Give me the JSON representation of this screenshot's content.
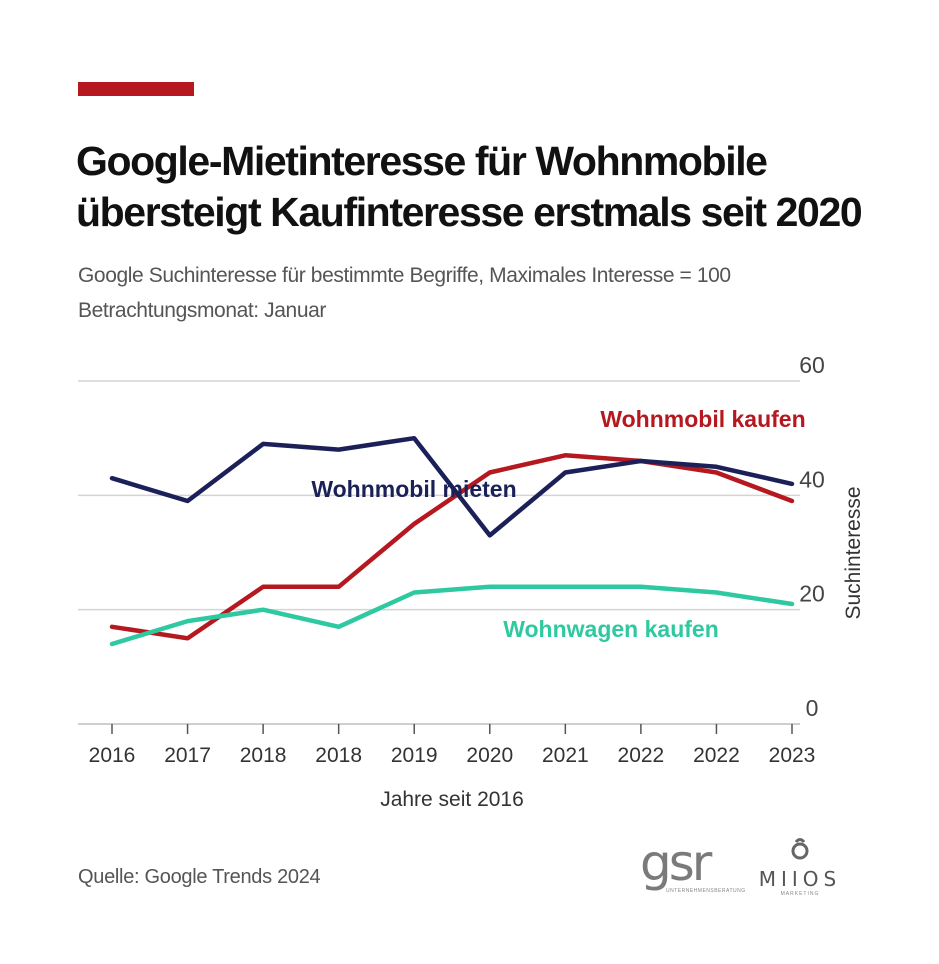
{
  "header": {
    "title": "Google-Mietinteresse für Wohnmobile übersteigt Kaufinteresse erstmals seit 2020",
    "subtitle_line1": "Google Suchinteresse für bestimmte Begriffe, Maximales Interesse = 100",
    "subtitle_line2": "Betrachtungsmonat: Januar",
    "accent_color": "#b5181f"
  },
  "chart_data": {
    "type": "line",
    "x": [
      "2016",
      "2017",
      "2018",
      "2018",
      "2019",
      "2020",
      "2021",
      "2022",
      "2022",
      "2023"
    ],
    "xlabel": "Jahre seit 2016",
    "ylabel": "Suchinteresse",
    "ylim": [
      0,
      60
    ],
    "yticks": [
      0,
      20,
      40,
      60
    ],
    "grid": "horizontal",
    "legend": "inline labels",
    "series": [
      {
        "name": "Wohnmobil mieten",
        "color": "#1b2058",
        "values": [
          43,
          39,
          49,
          48,
          50,
          33,
          44,
          46,
          45,
          42
        ]
      },
      {
        "name": "Wohnmobil kaufen",
        "color": "#b5181f",
        "values": [
          17,
          15,
          24,
          24,
          35,
          44,
          47,
          46,
          44,
          39
        ]
      },
      {
        "name": "Wohnwagen kaufen",
        "color": "#2ec9a0",
        "values": [
          14,
          18,
          20,
          17,
          23,
          24,
          24,
          24,
          23,
          21
        ]
      }
    ]
  },
  "footer": {
    "source": "Quelle: Google Trends 2024",
    "logo_gsr": "gsr",
    "logo_gsr_tag": "UNTERNEHMENSBERATUNG",
    "logo_miios": "MIIOS",
    "logo_miios_tag": "MARKETING"
  }
}
